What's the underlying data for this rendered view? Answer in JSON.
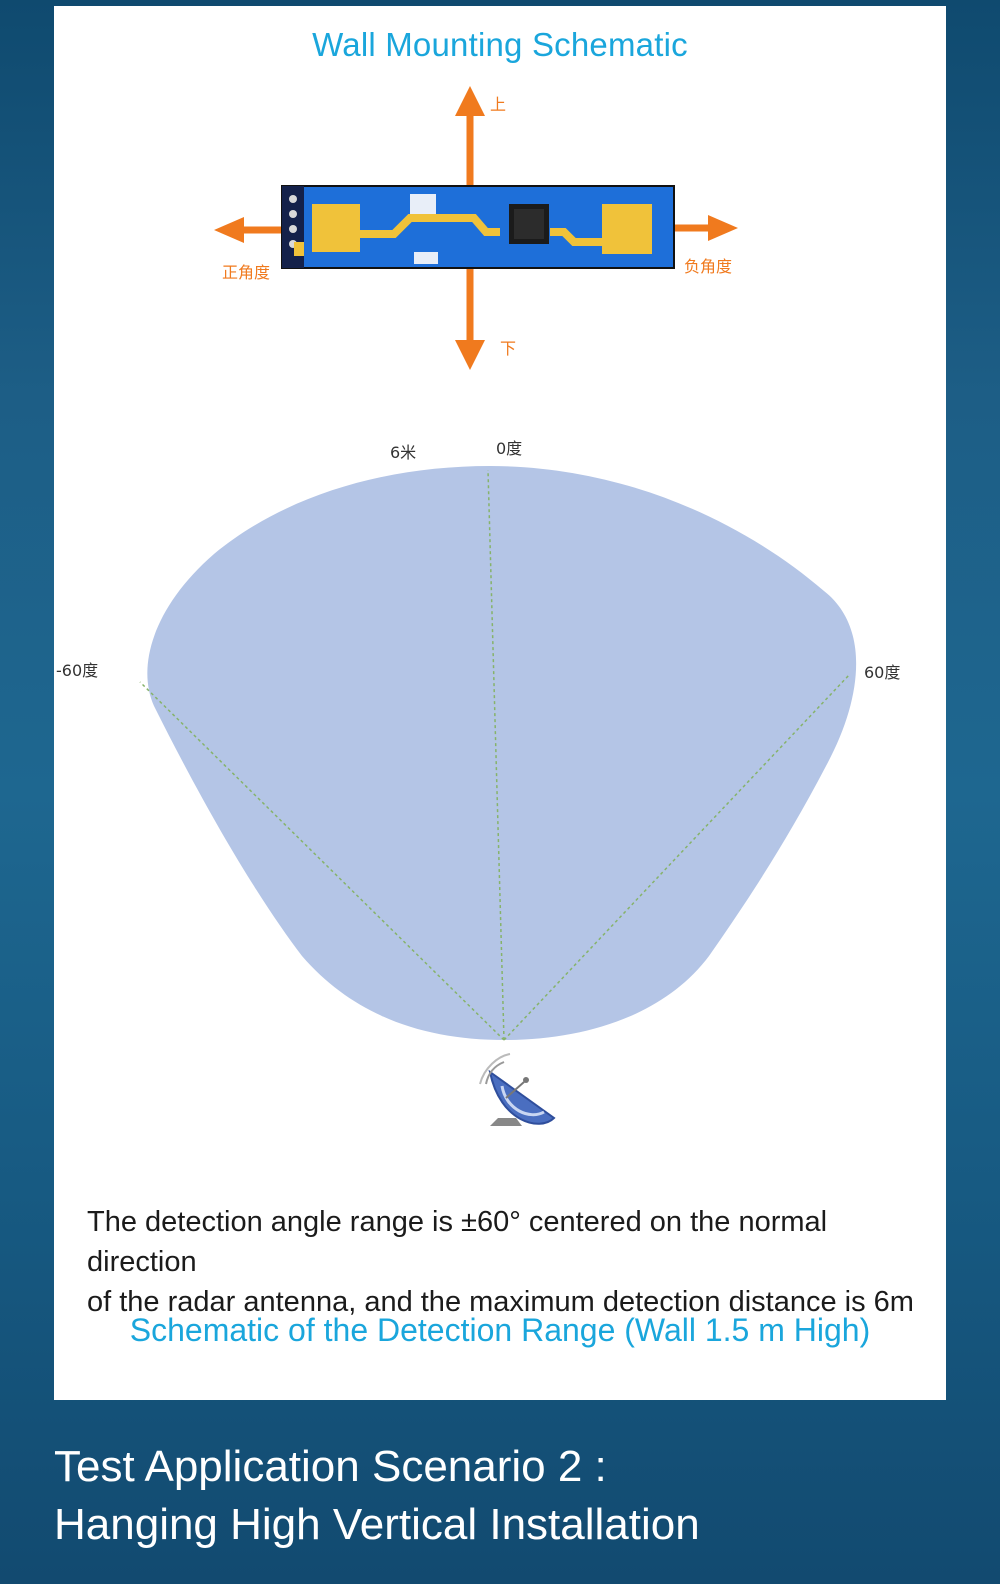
{
  "schematic": {
    "title": "Wall Mounting Schematic",
    "direction_labels": {
      "up": "上",
      "down": "下",
      "left": "正角度",
      "right": "负角度"
    },
    "arrow_color": "#f07a1e",
    "board_color": "#1e6fd9",
    "pad_color": "#f0c23a"
  },
  "range_diagram": {
    "distance_label": "6米",
    "center_angle_label": "0度",
    "left_angle_label": "-60度",
    "right_angle_label": "60度",
    "area_color": "#b4c5e6",
    "line_color": "#86b36a",
    "radar_icon": "satellite-dish-icon"
  },
  "caption": {
    "line1": "The detection angle range is ±60° centered on the normal direction",
    "line2": "of the radar antenna, and the maximum detection distance is 6m"
  },
  "subtitle": "Schematic of the Detection Range (Wall 1.5 m High)",
  "footer": {
    "line1": "Test Application Scenario 2 :",
    "line2": "Hanging High Vertical Installation"
  }
}
